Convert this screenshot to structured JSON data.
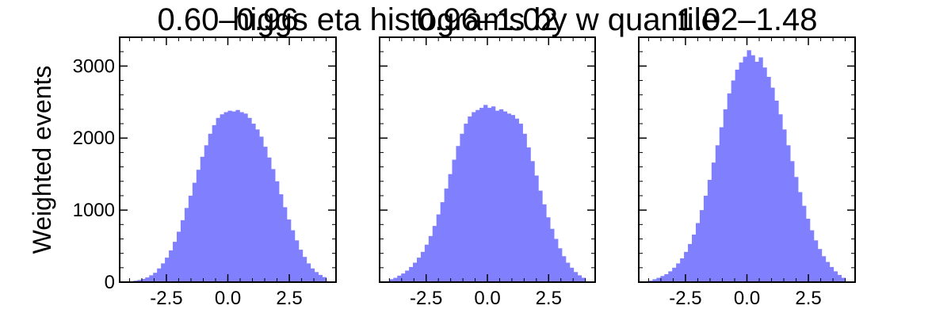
{
  "figure": {
    "suptitle": "higgs eta histograms by w quantile"
  },
  "chart_data": [
    {
      "type": "bar",
      "title": "0.60–0.96",
      "xlabel": "",
      "ylabel": "Weighted events",
      "xlim": [
        -4.4,
        4.4
      ],
      "ylim": [
        0,
        3400
      ],
      "xticks": [
        -2.5,
        0.0,
        2.5
      ],
      "xtick_labels": [
        "-2.5",
        "0.0",
        "2.5"
      ],
      "yticks": [
        0,
        1000,
        2000,
        3000
      ],
      "ytick_labels": [
        "0",
        "1000",
        "2000",
        "3000"
      ],
      "show_yticklabels": true,
      "bin_range": [
        -4.0,
        4.0
      ],
      "bin_width": 0.16,
      "color": "#8080ff",
      "values": [
        10,
        20,
        30,
        45,
        65,
        95,
        130,
        190,
        260,
        340,
        440,
        560,
        700,
        860,
        1030,
        1200,
        1380,
        1560,
        1740,
        1900,
        2060,
        2180,
        2280,
        2330,
        2360,
        2380,
        2370,
        2390,
        2360,
        2340,
        2280,
        2200,
        2120,
        2020,
        1880,
        1730,
        1570,
        1400,
        1220,
        1040,
        870,
        720,
        580,
        450,
        350,
        260,
        190,
        140,
        100,
        70
      ]
    },
    {
      "type": "bar",
      "title": "0.96–1.02",
      "xlabel": "",
      "ylabel": "",
      "xlim": [
        -4.4,
        4.4
      ],
      "ylim": [
        0,
        3400
      ],
      "xticks": [
        -2.5,
        0.0,
        2.5
      ],
      "xtick_labels": [
        "-2.5",
        "0.0",
        "2.5"
      ],
      "yticks": [
        0,
        1000,
        2000,
        3000
      ],
      "ytick_labels": [
        "0",
        "1000",
        "2000",
        "3000"
      ],
      "show_yticklabels": false,
      "bin_range": [
        -4.0,
        4.0
      ],
      "bin_width": 0.16,
      "color": "#8080ff",
      "values": [
        40,
        60,
        90,
        120,
        160,
        210,
        270,
        340,
        420,
        520,
        640,
        780,
        940,
        1110,
        1300,
        1500,
        1700,
        1890,
        2060,
        2200,
        2300,
        2360,
        2390,
        2420,
        2460,
        2420,
        2440,
        2380,
        2400,
        2370,
        2340,
        2320,
        2270,
        2200,
        2060,
        1870,
        1680,
        1480,
        1270,
        1080,
        900,
        740,
        600,
        470,
        360,
        270,
        200,
        140,
        95,
        60
      ]
    },
    {
      "type": "bar",
      "title": "1.02–1.48",
      "xlabel": "",
      "ylabel": "",
      "xlim": [
        -4.4,
        4.4
      ],
      "ylim": [
        0,
        3400
      ],
      "xticks": [
        -2.5,
        0.0,
        2.5
      ],
      "xtick_labels": [
        "-2.5",
        "0.0",
        "2.5"
      ],
      "yticks": [
        0,
        1000,
        2000,
        3000
      ],
      "ytick_labels": [
        "0",
        "1000",
        "2000",
        "3000"
      ],
      "show_yticklabels": false,
      "bin_range": [
        -4.0,
        4.0
      ],
      "bin_width": 0.16,
      "color": "#8080ff",
      "values": [
        20,
        40,
        60,
        85,
        110,
        150,
        200,
        260,
        330,
        420,
        530,
        660,
        820,
        1000,
        1200,
        1420,
        1660,
        1900,
        2150,
        2400,
        2620,
        2800,
        2950,
        3050,
        3130,
        3220,
        3150,
        3060,
        3120,
        2980,
        2850,
        2700,
        2520,
        2330,
        2120,
        1900,
        1680,
        1460,
        1250,
        1060,
        880,
        720,
        580,
        460,
        360,
        280,
        210,
        150,
        100,
        60
      ]
    }
  ]
}
